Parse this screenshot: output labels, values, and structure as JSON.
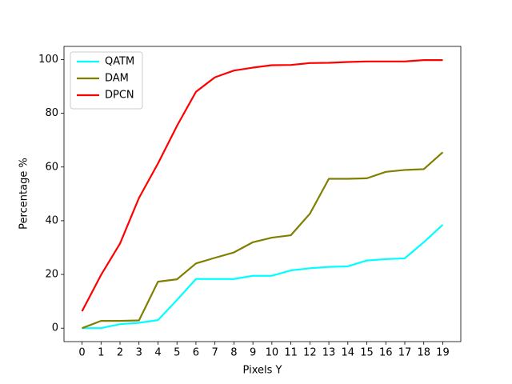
{
  "chart_data": {
    "type": "line",
    "x_label": "Pixels Y",
    "y_label": "Percentage %",
    "x": [
      0,
      1,
      2,
      3,
      4,
      5,
      6,
      7,
      8,
      9,
      10,
      11,
      12,
      13,
      14,
      15,
      16,
      17,
      18,
      19
    ],
    "xlim": [
      -0.95,
      19.95
    ],
    "xticks": [
      0,
      1,
      2,
      3,
      4,
      5,
      6,
      7,
      8,
      9,
      10,
      11,
      12,
      13,
      14,
      15,
      16,
      17,
      18,
      19
    ],
    "ylim": [
      -5,
      104.9
    ],
    "yticks": [
      0,
      20,
      40,
      60,
      80,
      100
    ],
    "legend": "upper left",
    "series": [
      {
        "name": "QATM",
        "color": "#00ffff",
        "values": [
          0,
          0,
          1.5,
          2,
          3,
          10.5,
          18.3,
          18.3,
          18.3,
          19.5,
          19.5,
          21.5,
          22.3,
          22.8,
          23,
          25.2,
          25.7,
          26,
          32,
          38.5
        ]
      },
      {
        "name": "DAM",
        "color": "#808000",
        "values": [
          0,
          2.7,
          2.7,
          2.9,
          17.3,
          18.2,
          24.1,
          26.2,
          28.2,
          32,
          33.7,
          34.6,
          42.6,
          55.6,
          55.6,
          55.8,
          58.2,
          58.9,
          59.2,
          65.5
        ]
      },
      {
        "name": "DPCN",
        "color": "#ff0000",
        "values": [
          6.3,
          19.8,
          31.5,
          48.5,
          61.3,
          75.3,
          88,
          93.4,
          95.9,
          97,
          97.9,
          98,
          98.7,
          98.8,
          99.1,
          99.3,
          99.3,
          99.3,
          99.8,
          99.8
        ]
      }
    ]
  }
}
